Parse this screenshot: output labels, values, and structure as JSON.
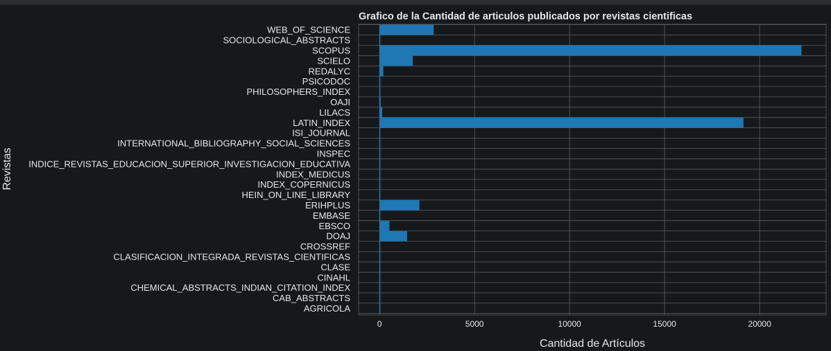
{
  "chart_data": {
    "type": "bar",
    "orientation": "horizontal",
    "title": "Grafico de la Cantidad de articulos publicados por revistas cientificas",
    "xlabel": "Cantidad de Artículos",
    "ylabel": "Revistas",
    "xlim": [
      -1100,
      23500
    ],
    "xticks": [
      0,
      5000,
      10000,
      15000,
      20000
    ],
    "xtick_labels": [
      "0",
      "5000",
      "10000",
      "15000",
      "20000"
    ],
    "grid": true,
    "legend": "none",
    "colors": {
      "bar": "#1f77b4",
      "background": "#16191c",
      "plot_background": "#16191c",
      "grid": "#5a5d60",
      "text": "#e6e6e6"
    },
    "categories": [
      "WEB_OF_SCIENCE",
      "SOCIOLOGICAL_ABSTRACTS",
      "SCOPUS",
      "SCIELO",
      "REDALYC",
      "PSICODOC",
      "PHILOSOPHERS_INDEX",
      "OAJI",
      "LILACS",
      "LATIN_INDEX",
      "ISI_JOURNAL",
      "INTERNATIONAL_BIBLIOGRAPHY_SOCIAL_SCIENCES",
      "INSPEC",
      "INDICE_REVISTAS_EDUCACION_SUPERIOR_INVESTIGACION_EDUCATIVA",
      "INDEX_MEDICUS",
      "INDEX_COPERNICUS",
      "HEIN_ON_LINE_LIBRARY",
      "ERIHPLUS",
      "EMBASE",
      "EBSCO",
      "DOAJ",
      "CROSSREF",
      "CLASIFICACION_INTEGRADA_REVISTAS_CIENTIFICAS",
      "CLASE",
      "CINAHL",
      "CHEMICAL_ABSTRACTS_INDIAN_CITATION_INDEX",
      "CAB_ABSTRACTS",
      "AGRICOLA"
    ],
    "values": [
      2850,
      5,
      22200,
      1750,
      200,
      5,
      5,
      60,
      140,
      19150,
      5,
      5,
      5,
      5,
      5,
      30,
      5,
      2100,
      5,
      520,
      1450,
      40,
      5,
      40,
      5,
      5,
      5,
      5
    ]
  }
}
